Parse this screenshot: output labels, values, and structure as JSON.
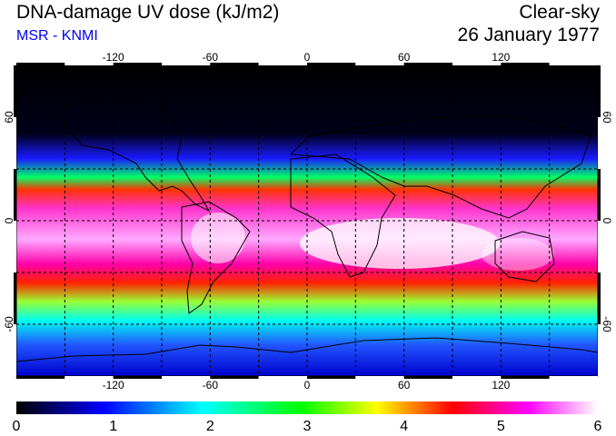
{
  "header": {
    "title": "DNA-damage UV dose (kJ/m2)",
    "credit": "MSR - KNMI",
    "sky_condition": "Clear-sky",
    "date": "26 January 1977"
  },
  "map": {
    "longitude_labels": [
      "-120",
      "-60",
      "0",
      "60",
      "120"
    ],
    "latitude_labels": [
      "60",
      "0",
      "-60"
    ],
    "longitude_values": [
      -120,
      -60,
      0,
      60,
      120
    ],
    "latitude_values": [
      60,
      0,
      -60
    ],
    "grid_lon_step": 30,
    "grid_lat_step": 30,
    "lon_range": [
      -180,
      180
    ],
    "lat_range": [
      -90,
      90
    ]
  },
  "colorbar": {
    "min": 0,
    "max": 6,
    "labels": [
      "0",
      "1",
      "2",
      "3",
      "4",
      "5",
      "6"
    ],
    "colors": [
      "#000000",
      "#0000ff",
      "#00ffff",
      "#00ff00",
      "#ffff00",
      "#ff0000",
      "#ff00ff",
      "#ffffff"
    ]
  }
}
